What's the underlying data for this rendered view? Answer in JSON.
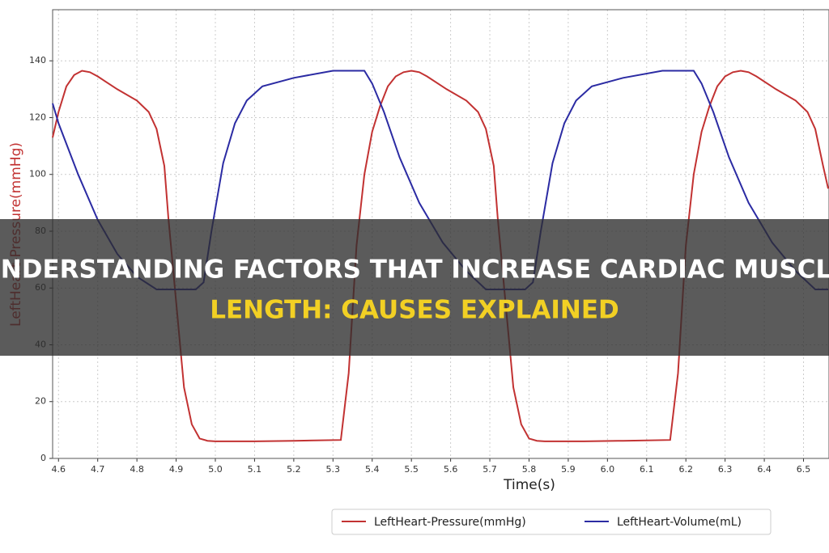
{
  "chart_data": {
    "type": "line",
    "title_lines": [
      "UNDERSTANDING FACTORS THAT INCREASE CARDIAC MUSCLE",
      "LENGTH: CAUSES EXPLAINED"
    ],
    "x_label": "Time(s)",
    "y_label": "LeftHeart-Pressure(mmHg)",
    "xlim": [
      4.585,
      6.565
    ],
    "ylim": [
      0,
      158
    ],
    "xticks": [
      4.6,
      4.7,
      4.8,
      4.9,
      {
        "value": 5,
        "label": "5.0"
      },
      5.1,
      5.2,
      5.3,
      5.4,
      5.5,
      5.6,
      5.7,
      5.8,
      5.9,
      {
        "value": 6,
        "label": "6.0"
      },
      6.1,
      6.2,
      6.3,
      6.4,
      6.5
    ],
    "yticks": [
      0,
      20,
      40,
      60,
      80,
      100,
      120,
      140
    ],
    "grid": true,
    "legend": "bottom",
    "series": [
      {
        "name": "LeftHeart-Pressure(mmHg)",
        "color": "#c23232",
        "x": [
          4.585,
          4.6,
          4.62,
          4.64,
          4.66,
          4.68,
          4.7,
          4.75,
          4.8,
          4.83,
          4.85,
          4.87,
          4.88,
          4.9,
          4.92,
          4.94,
          4.96,
          4.98,
          5.0,
          5.1,
          5.2,
          5.32,
          5.34,
          5.36,
          5.38,
          5.4,
          5.42,
          5.44,
          5.46,
          5.48,
          5.5,
          5.52,
          5.54,
          5.59,
          5.64,
          5.67,
          5.69,
          5.71,
          5.72,
          5.74,
          5.76,
          5.78,
          5.8,
          5.82,
          5.84,
          5.94,
          6.04,
          6.16,
          6.18,
          6.2,
          6.22,
          6.24,
          6.26,
          6.28,
          6.3,
          6.32,
          6.34,
          6.36,
          6.38,
          6.43,
          6.48,
          6.51,
          6.53,
          6.55,
          6.563
        ],
        "values": [
          113,
          122,
          131,
          135,
          136.5,
          136,
          134.5,
          130,
          126,
          122,
          116,
          103,
          85,
          55,
          25,
          12,
          7,
          6.2,
          6,
          6,
          6.2,
          6.5,
          30,
          75,
          100,
          115,
          124,
          131,
          134.5,
          136,
          136.5,
          136,
          134.5,
          130,
          126,
          122,
          116,
          103,
          85,
          55,
          25,
          12,
          7,
          6.2,
          6,
          6,
          6.2,
          6.5,
          30,
          75,
          100,
          115,
          124,
          131,
          134.5,
          136,
          136.5,
          136,
          134.5,
          130,
          126,
          122,
          116,
          103,
          95
        ]
      },
      {
        "name": "LeftHeart-Volume(mL)",
        "color": "#2b2ba3",
        "x": [
          4.585,
          4.6,
          4.65,
          4.7,
          4.75,
          4.8,
          4.85,
          4.95,
          4.97,
          4.99,
          5.02,
          5.05,
          5.08,
          5.12,
          5.2,
          5.3,
          5.38,
          5.4,
          5.43,
          5.47,
          5.52,
          5.58,
          5.64,
          5.69,
          5.79,
          5.81,
          5.83,
          5.86,
          5.89,
          5.92,
          5.96,
          6.04,
          6.14,
          6.22,
          6.24,
          6.27,
          6.31,
          6.36,
          6.42,
          6.48,
          6.53,
          6.563
        ],
        "values": [
          125,
          118,
          100,
          84,
          72,
          64,
          59.5,
          59.5,
          62,
          80,
          104,
          118,
          126,
          131,
          134,
          136.5,
          136.5,
          132,
          122,
          106,
          90,
          76,
          66,
          59.5,
          59.5,
          62,
          80,
          104,
          118,
          126,
          131,
          134,
          136.5,
          136.5,
          132,
          122,
          106,
          90,
          76,
          66,
          59.5,
          59.5
        ]
      }
    ]
  }
}
